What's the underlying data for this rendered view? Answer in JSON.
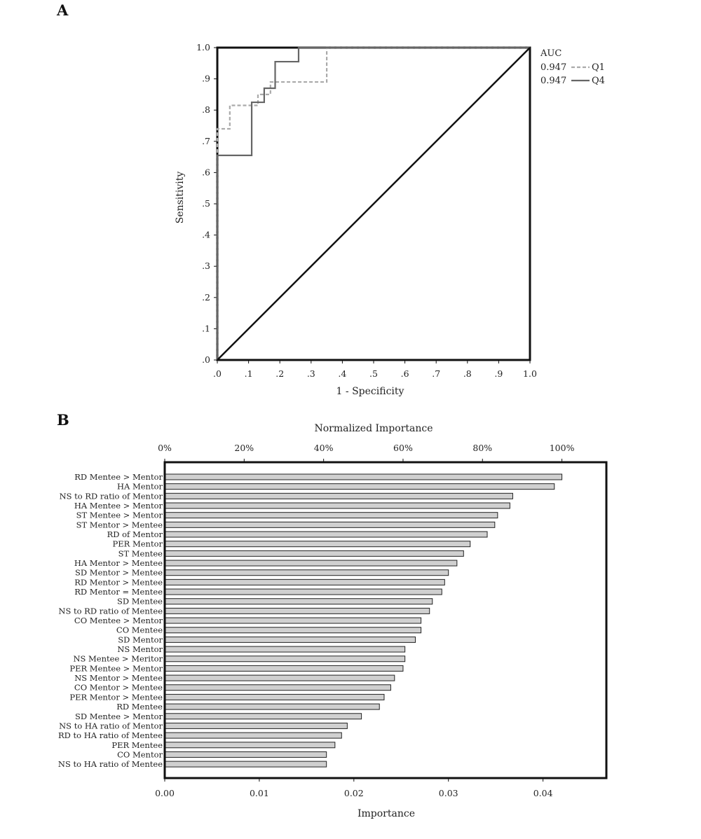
{
  "panels": {
    "a_label": "A",
    "b_label": "B"
  },
  "chart_data": [
    {
      "type": "line",
      "panel": "A",
      "xlabel": "1 - Specificity",
      "ylabel": "Sensitivity",
      "xlim": [
        0,
        1
      ],
      "ylim": [
        0,
        1
      ],
      "x_ticks": [
        ".0",
        ".1",
        ".2",
        ".3",
        ".4",
        ".5",
        ".6",
        ".7",
        ".8",
        ".9",
        "1.0"
      ],
      "y_ticks": [
        ".0",
        ".1",
        ".2",
        ".3",
        ".4",
        ".5",
        ".6",
        ".7",
        ".8",
        ".9",
        "1.0"
      ],
      "legend": {
        "title": "AUC",
        "placement": "right",
        "entries": [
          {
            "auc": "0.947",
            "name": "Q1",
            "style": "dashed",
            "color": "#aaaaaa"
          },
          {
            "auc": "0.947",
            "name": "Q4",
            "style": "solid",
            "color": "#666666"
          }
        ]
      },
      "series": [
        {
          "name": "Q1",
          "style": "dashed",
          "color": "#aaaaaa",
          "points": [
            [
              0,
              0
            ],
            [
              0,
              0.74
            ],
            [
              0.04,
              0.74
            ],
            [
              0.04,
              0.815
            ],
            [
              0.13,
              0.815
            ],
            [
              0.13,
              0.85
            ],
            [
              0.17,
              0.85
            ],
            [
              0.17,
              0.89
            ],
            [
              0.35,
              0.89
            ],
            [
              0.35,
              1.0
            ],
            [
              1.0,
              1.0
            ]
          ]
        },
        {
          "name": "Q4",
          "style": "solid",
          "color": "#666666",
          "points": [
            [
              0,
              0
            ],
            [
              0,
              0.655
            ],
            [
              0.11,
              0.655
            ],
            [
              0.11,
              0.825
            ],
            [
              0.15,
              0.825
            ],
            [
              0.15,
              0.87
            ],
            [
              0.185,
              0.87
            ],
            [
              0.185,
              0.955
            ],
            [
              0.26,
              0.955
            ],
            [
              0.26,
              1.0
            ],
            [
              1.0,
              1.0
            ]
          ]
        },
        {
          "name": "",
          "style": "solid",
          "color": "#111111",
          "points": [
            [
              0,
              0
            ],
            [
              1,
              1
            ]
          ]
        }
      ]
    },
    {
      "type": "bar",
      "panel": "B",
      "orientation": "horizontal",
      "xlabel": "Importance",
      "top_label": "Normalized Importance",
      "xlim": [
        0,
        0.0467
      ],
      "x_ticks": [
        "0.00",
        "0.01",
        "0.02",
        "0.03",
        "0.04"
      ],
      "top_ticks": [
        "0%",
        "20%",
        "40%",
        "60%",
        "80%",
        "100%"
      ],
      "bar_color": "#d0d0d0",
      "categories": [
        "RD Mentee > Mentor",
        "HA Mentor",
        "NS to RD ratio of Mentor",
        "HA Mentee > Mentor",
        "ST Mentee > Mentor",
        "ST Mentor > Mentee",
        "RD of Mentor",
        "PER Mentor",
        "ST Mentee",
        "HA Mentor > Mentee",
        "SD Mentor > Mentee",
        "RD Mentor > Mentee",
        "RD Mentor = Mentee",
        "SD Mentee",
        "NS to RD ratio of Mentee",
        "CO Mentee > Mentor",
        "CO Mentee",
        "SD Mentor",
        "NS Mentor",
        "NS Mentee > Meritor",
        "PER Mentee > Mentor",
        "NS Mentor > Mentee",
        "CO Mentor > Mentee",
        "PER Mentor > Mentee",
        "RD Mentee",
        "SD Mentee > Mentor",
        "NS to HA ratio of Mentor",
        "RD to HA ratio of Mentee",
        "PER Mentee",
        "CO Mentor",
        "NS to HA ratio of Mentee"
      ],
      "values": [
        0.042,
        0.0412,
        0.0368,
        0.0365,
        0.0352,
        0.0349,
        0.0341,
        0.0323,
        0.0316,
        0.0309,
        0.03,
        0.0296,
        0.0293,
        0.0283,
        0.028,
        0.0271,
        0.0271,
        0.0265,
        0.0254,
        0.0254,
        0.0252,
        0.0243,
        0.0239,
        0.0232,
        0.0227,
        0.0208,
        0.0193,
        0.0187,
        0.018,
        0.0171,
        0.0171
      ]
    }
  ]
}
